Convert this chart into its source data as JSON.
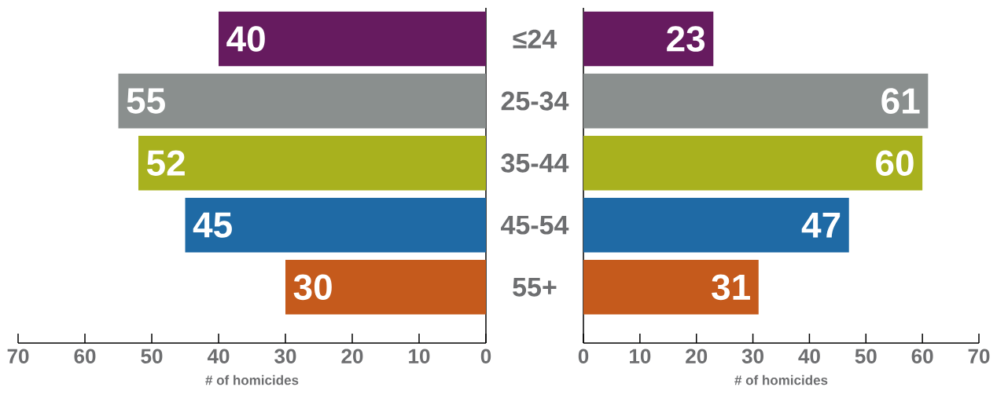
{
  "chart_data": [
    {
      "type": "bar",
      "orientation": "horizontal",
      "categories": [
        "≤24",
        "25-34",
        "35-44",
        "45-54",
        "55+"
      ],
      "values": [
        40,
        55,
        52,
        45,
        30
      ],
      "colors": [
        "#661b5f",
        "#8a8f8e",
        "#a8b11e",
        "#1f6aa5",
        "#c55a1c"
      ],
      "xlim": [
        70,
        0
      ],
      "xticks": [
        70,
        60,
        50,
        40,
        30,
        20,
        10,
        0
      ],
      "xlabel": "# of homicides",
      "data_labels": true
    },
    {
      "type": "bar",
      "orientation": "horizontal",
      "categories": [
        null,
        null,
        null,
        null,
        null
      ],
      "values": [
        23,
        61,
        60,
        47,
        31
      ],
      "colors": [
        "#661b5f",
        "#8a8f8e",
        "#a8b11e",
        "#1f6aa5",
        "#c55a1c"
      ],
      "xlim": [
        0,
        70
      ],
      "xticks": [
        0,
        10,
        20,
        30,
        40,
        50,
        60,
        70
      ],
      "xlabel": "# of homicides",
      "data_labels": true,
      "tick_labels": "x"
    }
  ]
}
